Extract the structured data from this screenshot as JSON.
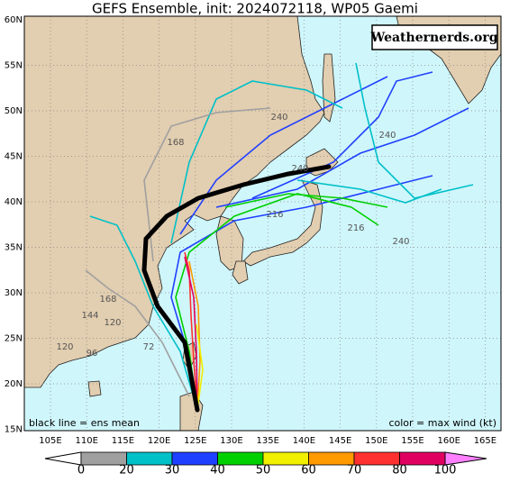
{
  "title": "GEFS Ensemble, init: 2024072118, WP05  Gaemi",
  "watermark": "Weathernerds.org",
  "note_left": "black line = ens mean",
  "note_right": "color = max wind (kt)",
  "lat_labels": [
    "60N",
    "55N",
    "50N",
    "45N",
    "40N",
    "35N",
    "30N",
    "25N",
    "20N",
    "15N"
  ],
  "lon_labels": [
    "105E",
    "110E",
    "115E",
    "120E",
    "125E",
    "130E",
    "135E",
    "140E",
    "145E",
    "150E",
    "155E",
    "160E",
    "165E"
  ],
  "hour_labels": [
    "240",
    "240",
    "216",
    "216",
    "240",
    "168",
    "144",
    "120",
    "96",
    "120",
    "72",
    "168",
    "240"
  ],
  "colorbar": {
    "ticks": [
      0,
      20,
      30,
      40,
      50,
      60,
      70,
      80,
      100
    ],
    "colors": [
      "#a0a0a0",
      "#00c0c8",
      "#2040ff",
      "#00d000",
      "#f0f000",
      "#ff9a00",
      "#ff3030",
      "#e00060"
    ]
  }
}
